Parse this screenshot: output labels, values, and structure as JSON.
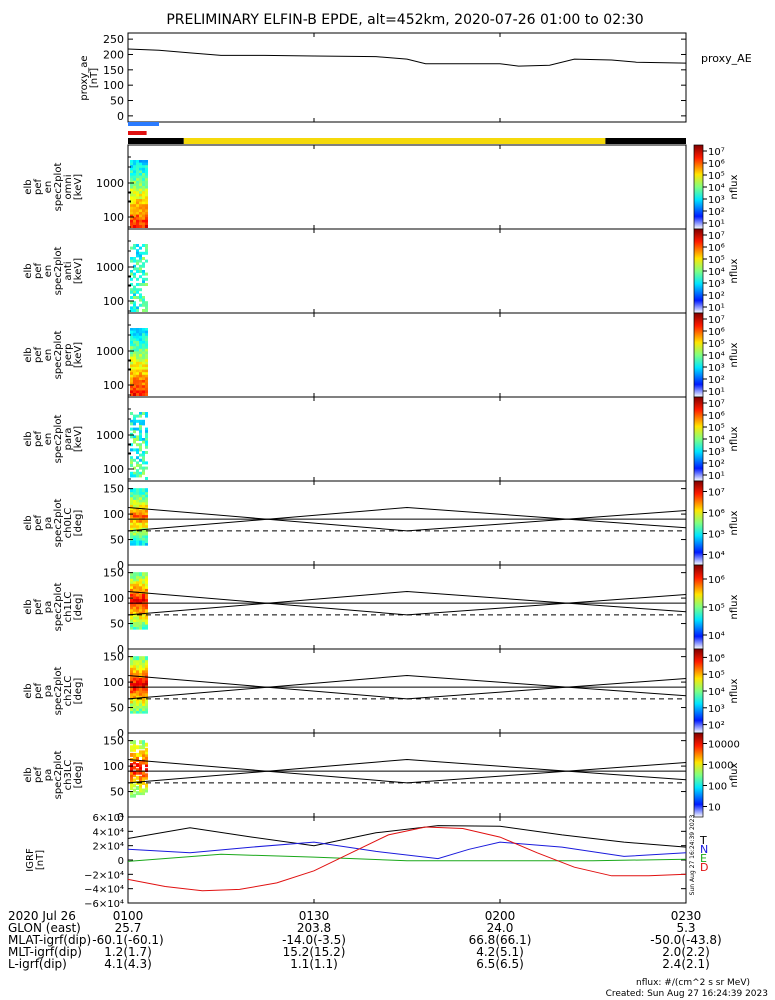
{
  "chart_data": {
    "type": "line",
    "title": "PRELIMINARY ELFIN-B EPDE, alt=452km, 2020-07-26 01:00 to 02:30",
    "time_axis": {
      "date_label": "2020 Jul 26",
      "start": "0100",
      "end": "0230",
      "ticks": [
        "0100",
        "0130",
        "0200",
        "0230"
      ]
    },
    "proxy_ae": {
      "ylabel": "proxy_ae\n[nT]",
      "legend": "proxy_AE",
      "yticks": [
        "0",
        "50",
        "100",
        "150",
        "200",
        "250"
      ],
      "ylim": [
        -20,
        270
      ],
      "t": [
        0,
        5,
        10,
        15,
        22,
        30,
        40,
        45,
        48,
        52,
        60,
        63,
        68,
        72,
        78,
        82,
        90
      ],
      "values": [
        218,
        214,
        205,
        197,
        197,
        195,
        193,
        185,
        170,
        170,
        170,
        162,
        165,
        185,
        182,
        175,
        172
      ]
    },
    "state_bars": [
      {
        "color": "#2b7bff",
        "t": [
          0,
          5
        ]
      },
      {
        "color": "#e01010",
        "t": [
          0,
          3
        ]
      }
    ],
    "sun_bar": {
      "segments": [
        {
          "color": "#000000",
          "t": [
            0,
            9
          ]
        },
        {
          "color": "#f5d90a",
          "t": [
            9,
            77
          ]
        },
        {
          "color": "#000000",
          "t": [
            77,
            90
          ]
        }
      ]
    },
    "spectrograms": [
      {
        "name": "omni",
        "ylabel": "elb\npef\nen\nspec2plot\nomni\n[keV]",
        "yticks": [
          "100",
          "1000"
        ],
        "cbar_ticks": [
          "10¹",
          "10²",
          "10³",
          "10⁴",
          "10⁵",
          "10⁶",
          "10⁷"
        ],
        "cbar_label": "nflux"
      },
      {
        "name": "anti",
        "ylabel": "elb\npef\nen\nspec2plot\nanti\n[keV]",
        "yticks": [
          "100",
          "1000"
        ],
        "cbar_ticks": [
          "10¹",
          "10²",
          "10³",
          "10⁴",
          "10⁵",
          "10⁶",
          "10⁷"
        ],
        "cbar_label": "nflux"
      },
      {
        "name": "perp",
        "ylabel": "elb\npef\nen\nspec2plot\nperp\n[keV]",
        "yticks": [
          "100",
          "1000"
        ],
        "cbar_ticks": [
          "10¹",
          "10²",
          "10³",
          "10⁴",
          "10⁵",
          "10⁶",
          "10⁷"
        ],
        "cbar_label": "nflux"
      },
      {
        "name": "para",
        "ylabel": "elb\npef\nen\nspec2plot\npara\n[keV]",
        "yticks": [
          "100",
          "1000"
        ],
        "cbar_ticks": [
          "10¹",
          "10²",
          "10³",
          "10⁴",
          "10⁵",
          "10⁶",
          "10⁷"
        ],
        "cbar_label": "nflux"
      }
    ],
    "pitch_angle": [
      {
        "name": "ch0LC",
        "ylabel": "elb\npef\npa\nspec2plot\nch0LC\n[deg]",
        "cbar_ticks": [
          "10⁴",
          "10⁵",
          "10⁶",
          "10⁷"
        ],
        "cbar_label": "nflux"
      },
      {
        "name": "ch1LC",
        "ylabel": "elb\npef\npa\nspec2plot\nch1LC\n[deg]",
        "cbar_ticks": [
          "10⁴",
          "10⁵",
          "10⁶"
        ],
        "cbar_label": "nflux"
      },
      {
        "name": "ch2LC",
        "ylabel": "elb\npef\npa\nspec2plot\nch2LC\n[deg]",
        "cbar_ticks": [
          "10²",
          "10³",
          "10⁴",
          "10⁵",
          "10⁶"
        ],
        "cbar_label": "nflux"
      },
      {
        "name": "ch3LC",
        "ylabel": "elb\npef\npa\nspec2plot\nch3LC\n[deg]",
        "cbar_ticks": [
          "10",
          "100",
          "1000",
          "10000"
        ],
        "cbar_label": "nflux"
      }
    ],
    "pa_yticks": [
      "0",
      "50",
      "100",
      "150"
    ],
    "pa_ylim": [
      0,
      165
    ],
    "loss_cone": {
      "t": [
        0,
        45,
        90
      ],
      "values": [
        113,
        67,
        107
      ]
    },
    "anti_loss_cone": {
      "t": [
        0,
        45,
        90
      ],
      "values": [
        67,
        113,
        73
      ]
    },
    "pa_reference": {
      "solid": 90
    },
    "igrf": {
      "ylabel": "IGRF\n[nT]",
      "yticks": [
        "6×10⁴",
        "4×10⁴",
        "2×10⁴",
        "0",
        "−2×10⁴",
        "−4×10⁴",
        "−6×10⁴"
      ],
      "ylim": [
        -60000,
        60000
      ],
      "series": [
        {
          "name": "T",
          "color": "#000000",
          "t": [
            0,
            10,
            20,
            30,
            40,
            50,
            60,
            70,
            80,
            90
          ],
          "values": [
            30000,
            45000,
            32000,
            20000,
            38000,
            48000,
            47000,
            35000,
            25000,
            18000
          ]
        },
        {
          "name": "N",
          "color": "#1a1adc",
          "t": [
            0,
            10,
            20,
            30,
            40,
            50,
            55,
            60,
            70,
            80,
            90
          ],
          "values": [
            15000,
            10000,
            18000,
            25000,
            12000,
            2000,
            15000,
            25000,
            18000,
            5000,
            10000
          ]
        },
        {
          "name": "E",
          "color": "#1aa81a",
          "t": [
            0,
            15,
            30,
            45,
            60,
            75,
            90
          ],
          "values": [
            -2000,
            8000,
            4000,
            -1000,
            -1000,
            -1000,
            1000
          ]
        },
        {
          "name": "D",
          "color": "#e01010",
          "t": [
            0,
            6,
            12,
            18,
            24,
            30,
            36,
            42,
            48,
            54,
            60,
            66,
            72,
            78,
            84,
            90
          ],
          "values": [
            -27000,
            -37000,
            -43000,
            -41000,
            -32000,
            -15000,
            10000,
            35000,
            46000,
            44000,
            32000,
            10000,
            -10000,
            -22000,
            -22000,
            -20000
          ]
        }
      ]
    },
    "orbit_table": {
      "rows": [
        {
          "label": "GLON (east)",
          "values": [
            "25.7",
            "203.8",
            "24.0",
            "5.3"
          ]
        },
        {
          "label": "MLAT-igrf(dip)",
          "values": [
            "-60.1(-60.1)",
            "-14.0(-3.5)",
            "66.8(66.1)",
            "-50.0(-43.8)"
          ]
        },
        {
          "label": "MLT-igrf(dip)",
          "values": [
            "1.2(1.7)",
            "15.2(15.2)",
            "4.2(5.1)",
            "2.0(2.2)"
          ]
        },
        {
          "label": "L-igrf(dip)",
          "values": [
            "4.1(4.3)",
            "1.1(1.1)",
            "6.5(6.5)",
            "2.4(2.1)"
          ]
        }
      ]
    }
  },
  "footer": {
    "units": "nflux: #/(cm^2 s sr MeV)",
    "created": "Created: Sun Aug 27 16:24:39 2023",
    "side_stamp": "Sun Aug 27 16:24:39 2023"
  }
}
